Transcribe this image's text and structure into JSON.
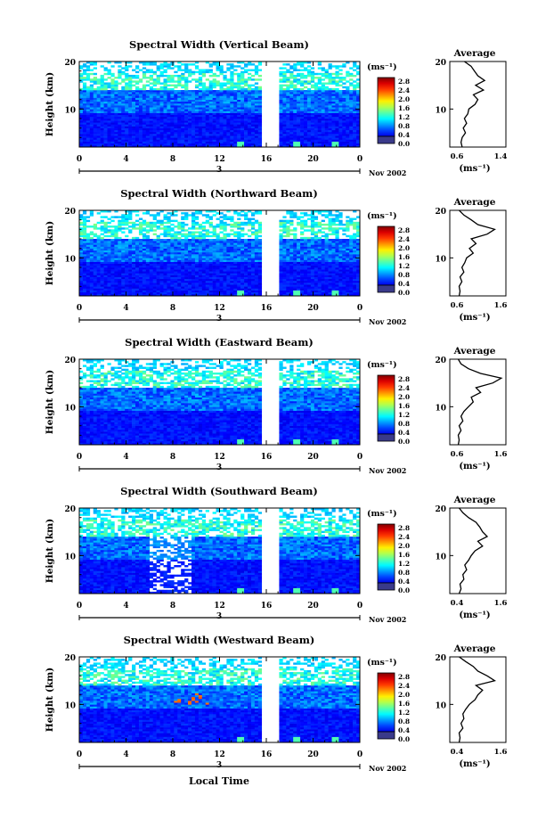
{
  "figure": {
    "xlabel": "Local Time",
    "date_label": "Nov 2002",
    "day_label": "3",
    "unit_label": "(ms⁻¹)",
    "y_axis_label": "Height (km)",
    "avg_title": "Average",
    "avg_xlabel": "(ms⁻¹)"
  },
  "chart_data": [
    {
      "type": "heatmap",
      "title": "Spectral Width (Vertical Beam)",
      "xlim": [
        0,
        24
      ],
      "ylim": [
        2,
        20
      ],
      "x_ticks": [
        "0",
        "4",
        "8",
        "12",
        "16",
        "20",
        "0"
      ],
      "y_ticks": [
        "20",
        "10"
      ],
      "colorbar_ticks": [
        "2.8",
        "2.4",
        "2.0",
        "1.6",
        "1.2",
        "0.8",
        "0.4",
        "0.0"
      ],
      "gap_hours": [
        15.6,
        17.1
      ],
      "avg_profile": {
        "xlim": [
          0.4,
          1.4
        ],
        "x_ticks": [
          "0.6",
          "1.4"
        ],
        "height": [
          2,
          3,
          4,
          5,
          6,
          7,
          8,
          9,
          10,
          11,
          12,
          13,
          14,
          15,
          16,
          17,
          18,
          19,
          20
        ],
        "value": [
          0.62,
          0.6,
          0.62,
          0.68,
          0.64,
          0.7,
          0.66,
          0.72,
          0.74,
          0.85,
          0.9,
          0.82,
          1.0,
          0.86,
          1.02,
          0.9,
          0.84,
          0.78,
          0.66
        ]
      }
    },
    {
      "type": "heatmap",
      "title": "Spectral Width (Northward Beam)",
      "xlim": [
        0,
        24
      ],
      "ylim": [
        2,
        20
      ],
      "x_ticks": [
        "0",
        "4",
        "8",
        "12",
        "16",
        "20",
        "0"
      ],
      "y_ticks": [
        "20",
        "10"
      ],
      "colorbar_ticks": [
        "2.8",
        "2.4",
        "2.0",
        "1.6",
        "1.2",
        "0.8",
        "0.4",
        "0.0"
      ],
      "gap_hours": [
        15.6,
        17.1
      ],
      "avg_profile": {
        "xlim": [
          0.4,
          1.6
        ],
        "x_ticks": [
          "0.6",
          "1.6"
        ],
        "height": [
          2,
          3,
          4,
          5,
          6,
          7,
          8,
          9,
          10,
          11,
          12,
          13,
          14,
          15,
          16,
          17,
          18,
          19,
          20
        ],
        "value": [
          0.6,
          0.62,
          0.6,
          0.66,
          0.62,
          0.7,
          0.66,
          0.72,
          0.76,
          0.9,
          0.82,
          0.96,
          0.86,
          1.2,
          1.36,
          1.0,
          0.86,
          0.7,
          0.6
        ]
      }
    },
    {
      "type": "heatmap",
      "title": "Spectral Width (Eastward Beam)",
      "xlim": [
        0,
        24
      ],
      "ylim": [
        2,
        20
      ],
      "x_ticks": [
        "0",
        "4",
        "8",
        "12",
        "16",
        "20",
        "0"
      ],
      "y_ticks": [
        "20",
        "10"
      ],
      "colorbar_ticks": [
        "2.8",
        "2.4",
        "2.0",
        "1.6",
        "1.2",
        "0.8",
        "0.4",
        "0.0"
      ],
      "gap_hours": [
        15.6,
        17.1
      ],
      "avg_profile": {
        "xlim": [
          0.4,
          1.6
        ],
        "x_ticks": [
          "0.6",
          "1.6"
        ],
        "height": [
          2,
          3,
          4,
          5,
          6,
          7,
          8,
          9,
          10,
          11,
          12,
          13,
          14,
          15,
          16,
          17,
          18,
          19,
          20
        ],
        "value": [
          0.58,
          0.6,
          0.58,
          0.64,
          0.6,
          0.68,
          0.64,
          0.7,
          0.8,
          0.9,
          0.86,
          1.06,
          0.96,
          1.32,
          1.5,
          1.06,
          0.8,
          0.64,
          0.58
        ]
      }
    },
    {
      "type": "heatmap",
      "title": "Spectral Width (Southward Beam)",
      "xlim": [
        0,
        24
      ],
      "ylim": [
        2,
        20
      ],
      "x_ticks": [
        "0",
        "4",
        "8",
        "12",
        "16",
        "20",
        "0"
      ],
      "y_ticks": [
        "20",
        "10"
      ],
      "colorbar_ticks": [
        "2.8",
        "2.4",
        "2.0",
        "1.6",
        "1.2",
        "0.8",
        "0.4",
        "0.0"
      ],
      "gap_hours": [
        15.6,
        17.1
      ],
      "avg_profile": {
        "xlim": [
          0.4,
          1.6
        ],
        "x_ticks": [
          "0.4",
          "1.6"
        ],
        "height": [
          2,
          3,
          4,
          5,
          6,
          7,
          8,
          9,
          10,
          11,
          12,
          13,
          14,
          15,
          16,
          17,
          18,
          19,
          20
        ],
        "value": [
          0.6,
          0.64,
          0.62,
          0.7,
          0.68,
          0.76,
          0.72,
          0.8,
          0.86,
          0.94,
          1.1,
          1.0,
          1.2,
          1.1,
          1.04,
          0.96,
          0.8,
          0.68,
          0.6
        ]
      }
    },
    {
      "type": "heatmap",
      "title": "Spectral Width (Westward Beam)",
      "xlim": [
        0,
        24
      ],
      "ylim": [
        2,
        20
      ],
      "x_ticks": [
        "0",
        "4",
        "8",
        "12",
        "16",
        "20",
        "0"
      ],
      "y_ticks": [
        "20",
        "10"
      ],
      "colorbar_ticks": [
        "2.8",
        "2.4",
        "2.0",
        "1.6",
        "1.2",
        "0.8",
        "0.4",
        "0.0"
      ],
      "gap_hours": [
        15.6,
        17.1
      ],
      "avg_profile": {
        "xlim": [
          0.4,
          1.6
        ],
        "x_ticks": [
          "0.4",
          "1.6"
        ],
        "height": [
          2,
          3,
          4,
          5,
          6,
          7,
          8,
          9,
          10,
          11,
          12,
          13,
          14,
          15,
          16,
          17,
          18,
          19,
          20
        ],
        "value": [
          0.6,
          0.62,
          0.6,
          0.68,
          0.64,
          0.7,
          0.68,
          0.74,
          0.82,
          0.94,
          1.0,
          1.1,
          0.96,
          1.36,
          1.2,
          1.0,
          0.9,
          0.74,
          0.6
        ]
      }
    }
  ]
}
